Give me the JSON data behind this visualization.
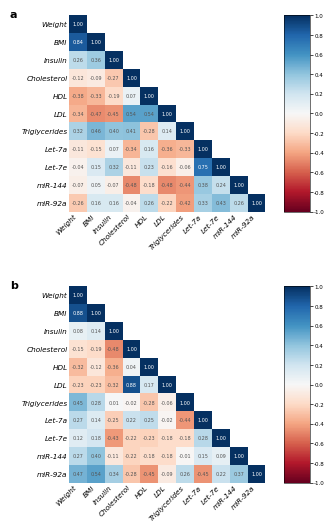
{
  "labels": [
    "Weight",
    "BMI",
    "Insulin",
    "Cholesterol",
    "HDL",
    "LDL",
    "Triglycerides",
    "Let-7a",
    "Let-7e",
    "miR-144",
    "miR-92a"
  ],
  "matrix_a": [
    [
      1.0,
      null,
      null,
      null,
      null,
      null,
      null,
      null,
      null,
      null,
      null
    ],
    [
      0.84,
      1.0,
      null,
      null,
      null,
      null,
      null,
      null,
      null,
      null,
      null
    ],
    [
      0.26,
      0.36,
      1.0,
      null,
      null,
      null,
      null,
      null,
      null,
      null,
      null
    ],
    [
      -0.12,
      -0.09,
      -0.27,
      1.0,
      null,
      null,
      null,
      null,
      null,
      null,
      null
    ],
    [
      -0.38,
      -0.33,
      -0.19,
      0.07,
      1.0,
      null,
      null,
      null,
      null,
      null,
      null
    ],
    [
      -0.34,
      -0.47,
      -0.45,
      0.54,
      0.54,
      1.0,
      null,
      null,
      null,
      null,
      null
    ],
    [
      0.32,
      0.46,
      0.4,
      0.41,
      -0.28,
      0.14,
      1.0,
      null,
      null,
      null,
      null
    ],
    [
      -0.11,
      -0.15,
      0.07,
      -0.34,
      0.16,
      -0.36,
      -0.33,
      1.0,
      null,
      null,
      null
    ],
    [
      -0.04,
      0.15,
      0.32,
      -0.11,
      0.23,
      -0.16,
      -0.06,
      0.75,
      1.0,
      null,
      null
    ],
    [
      -0.07,
      0.05,
      -0.07,
      -0.48,
      -0.18,
      -0.48,
      -0.44,
      0.38,
      0.24,
      1.0,
      null
    ],
    [
      -0.26,
      0.16,
      0.16,
      -0.04,
      0.26,
      -0.22,
      -0.42,
      0.33,
      0.43,
      0.26,
      1.0
    ]
  ],
  "matrix_b": [
    [
      1.0,
      null,
      null,
      null,
      null,
      null,
      null,
      null,
      null,
      null,
      null
    ],
    [
      0.88,
      1.0,
      null,
      null,
      null,
      null,
      null,
      null,
      null,
      null,
      null
    ],
    [
      0.08,
      0.14,
      1.0,
      null,
      null,
      null,
      null,
      null,
      null,
      null,
      null
    ],
    [
      -0.15,
      -0.19,
      -0.48,
      1.0,
      null,
      null,
      null,
      null,
      null,
      null,
      null
    ],
    [
      -0.32,
      -0.12,
      -0.36,
      0.04,
      1.0,
      null,
      null,
      null,
      null,
      null,
      null
    ],
    [
      -0.23,
      -0.23,
      -0.32,
      0.88,
      0.17,
      1.0,
      null,
      null,
      null,
      null,
      null
    ],
    [
      0.45,
      0.28,
      0.01,
      -0.02,
      -0.28,
      -0.06,
      1.0,
      null,
      null,
      null,
      null
    ],
    [
      0.27,
      0.14,
      -0.25,
      0.22,
      0.25,
      -0.02,
      -0.44,
      1.0,
      null,
      null,
      null
    ],
    [
      0.12,
      0.18,
      -0.43,
      -0.22,
      -0.23,
      -0.18,
      -0.18,
      0.28,
      1.0,
      null,
      null
    ],
    [
      0.27,
      0.4,
      -0.11,
      -0.22,
      -0.18,
      -0.18,
      -0.01,
      0.15,
      0.09,
      1.0,
      null
    ],
    [
      0.47,
      0.54,
      0.34,
      -0.28,
      -0.45,
      -0.09,
      0.26,
      -0.45,
      0.22,
      0.37,
      1.0
    ]
  ],
  "vmin": -1.0,
  "vmax": 1.0,
  "colormap": "RdBu",
  "colorbar_ticks": [
    1.0,
    0.8,
    0.6,
    0.4,
    0.2,
    0.0,
    -0.2,
    -0.4,
    -0.6,
    -0.8,
    -1.0
  ],
  "colorbar_ticklabels": [
    "1.0",
    "0.8",
    "0.6",
    "0.4",
    "0.2",
    "0.0",
    "-0.2",
    "-0.4",
    "-0.6",
    "-0.8",
    "-1.0"
  ],
  "panel_a_label": "a",
  "panel_b_label": "b",
  "bg_color": "#ffffff",
  "fontsize_labels": 5.2,
  "fontsize_values": 3.5,
  "fontsize_panel": 8,
  "fontsize_cbar": 4.0
}
